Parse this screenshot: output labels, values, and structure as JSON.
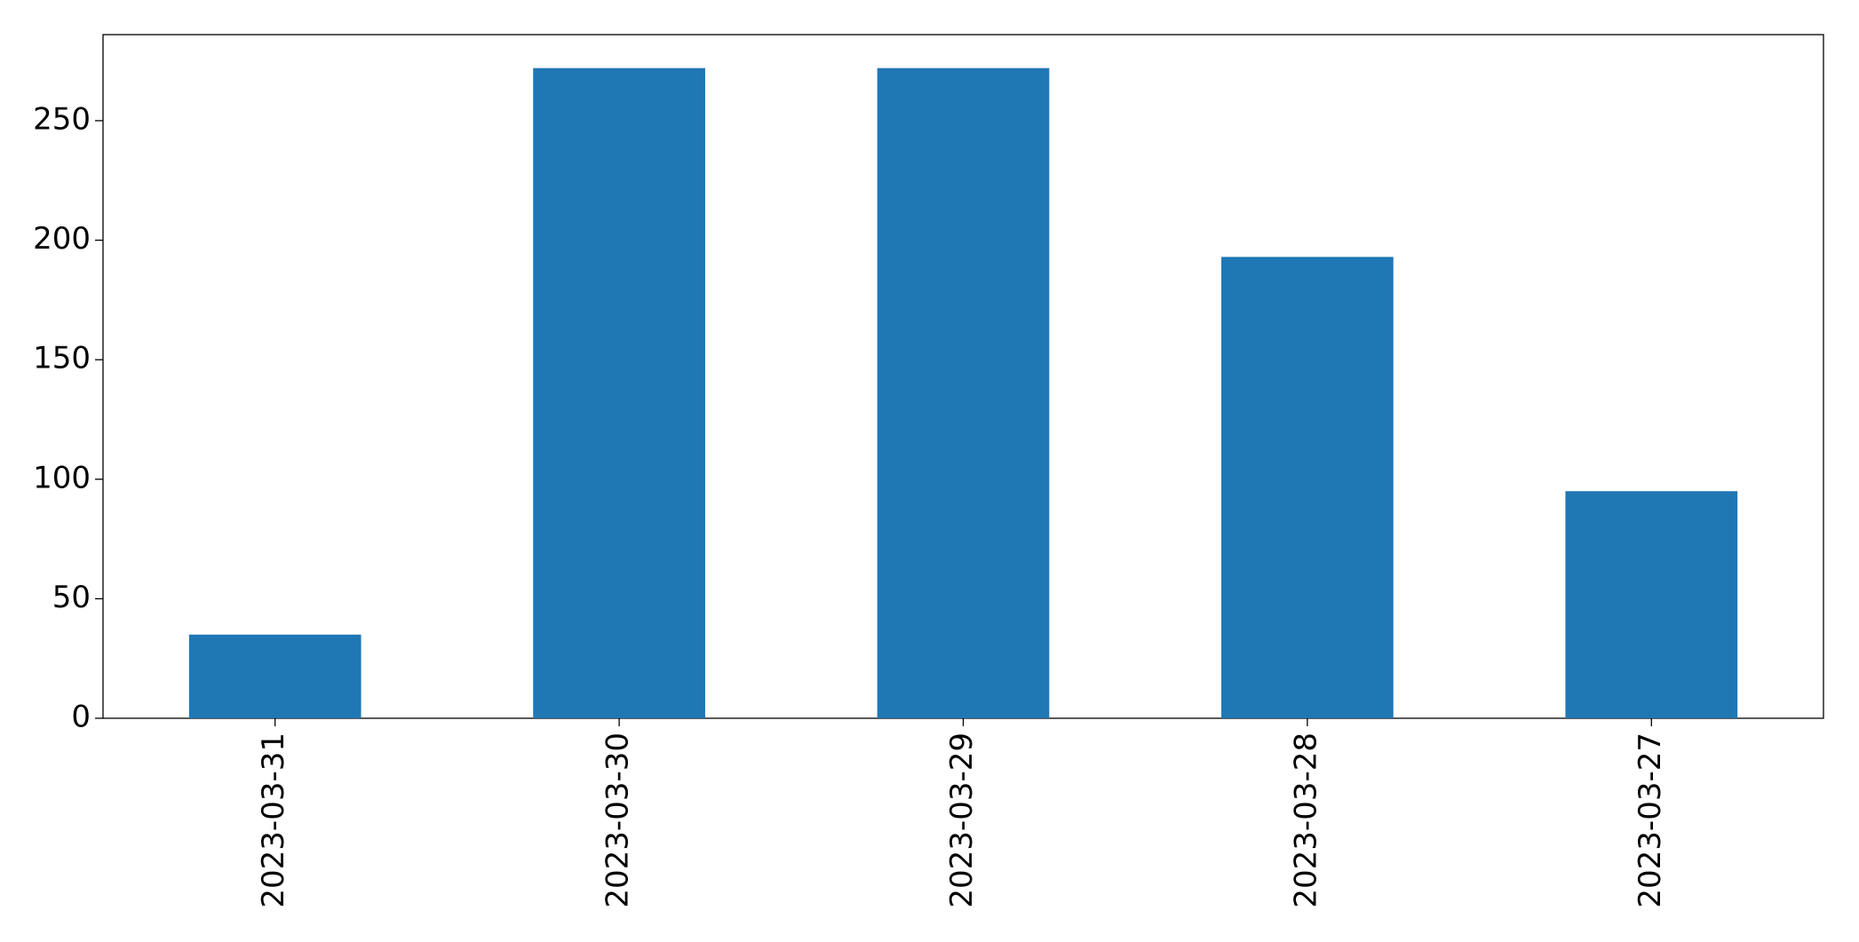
{
  "chart_data": {
    "type": "bar",
    "categories": [
      "2023-03-31",
      "2023-03-30",
      "2023-03-29",
      "2023-03-28",
      "2023-03-27"
    ],
    "values": [
      35,
      272,
      272,
      193,
      95
    ],
    "color": "#1f77b4",
    "ylim": [
      0,
      286
    ],
    "yticks": [
      0,
      50,
      100,
      150,
      200,
      250
    ],
    "grid": false
  }
}
